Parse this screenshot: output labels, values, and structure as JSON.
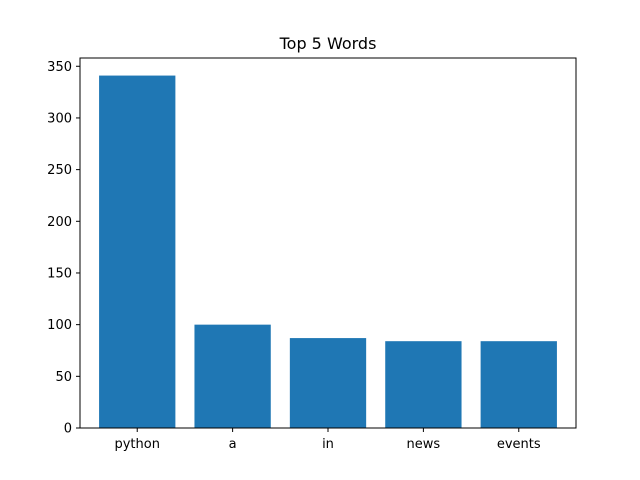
{
  "chart_data": {
    "type": "bar",
    "title": "Top 5 Words",
    "xlabel": "",
    "ylabel": "",
    "categories": [
      "python",
      "a",
      "in",
      "news",
      "events"
    ],
    "values": [
      341,
      100,
      87,
      84,
      84
    ],
    "ylim": [
      0,
      358
    ],
    "yticks": [
      0,
      50,
      100,
      150,
      200,
      250,
      300,
      350
    ],
    "grid": false,
    "bar_color": "#1f77b4"
  }
}
